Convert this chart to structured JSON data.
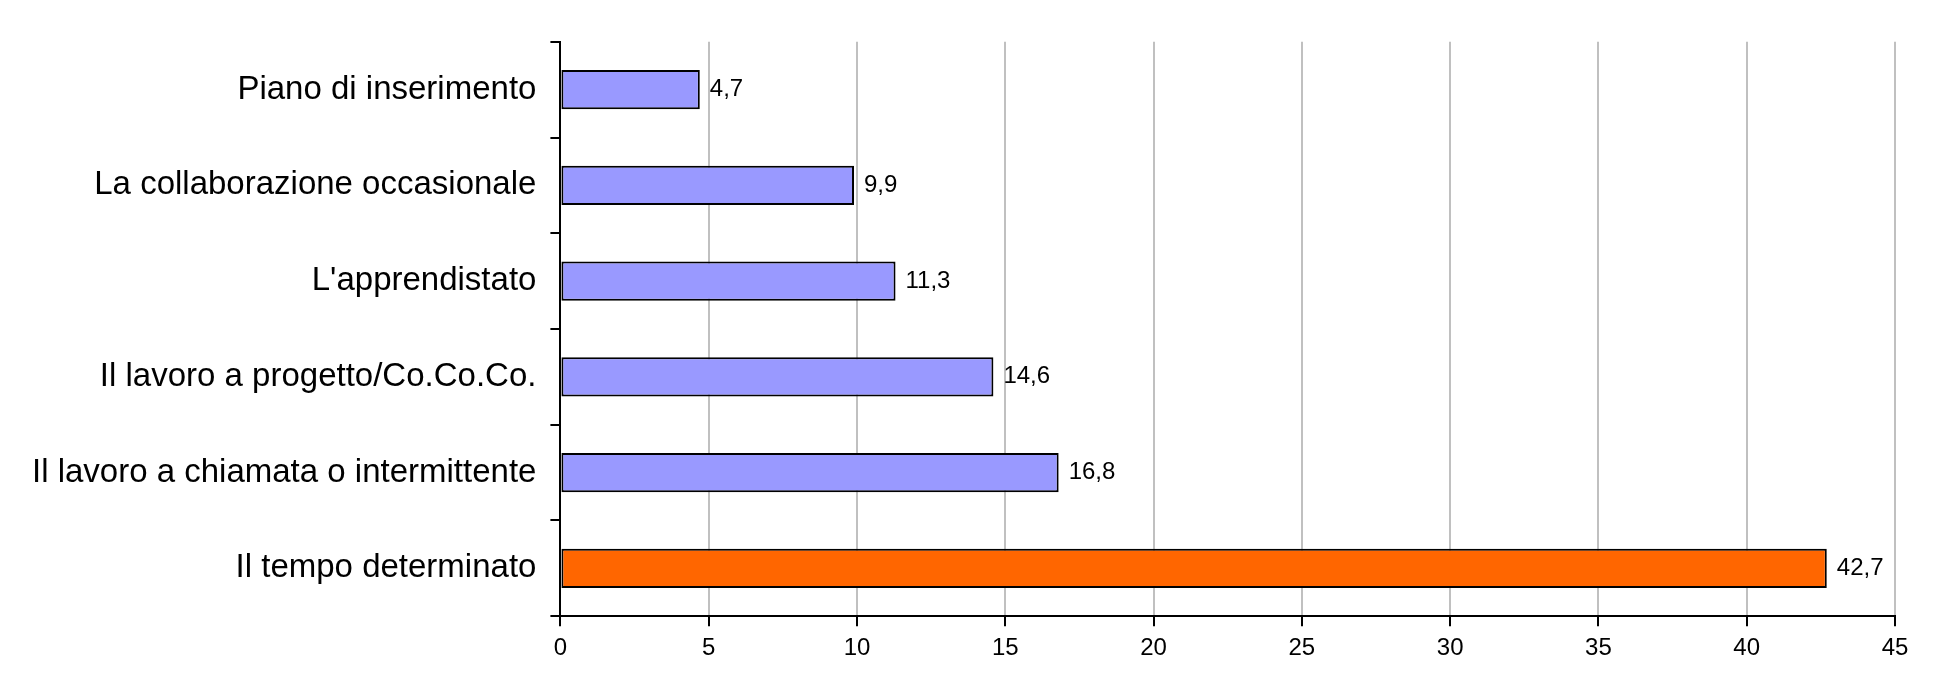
{
  "chart_data": {
    "type": "bar",
    "orientation": "horizontal",
    "categories": [
      "Piano di inserimento",
      "La collaborazione occasionale",
      "L'apprendistato",
      "Il lavoro a progetto/Co.Co.Co.",
      "Il lavoro a chiamata o intermittente",
      "Il tempo determinato"
    ],
    "values": [
      4.7,
      9.9,
      11.3,
      14.6,
      16.8,
      42.7
    ],
    "colors": [
      "#9999ff",
      "#9999ff",
      "#9999ff",
      "#9999ff",
      "#9999ff",
      "#ff6600"
    ],
    "value_labels": [
      "4,7",
      "9,9",
      "11,3",
      "14,6",
      "16,8",
      "42,7"
    ],
    "xlim": [
      0,
      45
    ],
    "xticks": [
      0,
      5,
      10,
      15,
      20,
      25,
      30,
      35,
      40,
      45
    ],
    "grid": "x",
    "legend": false
  }
}
